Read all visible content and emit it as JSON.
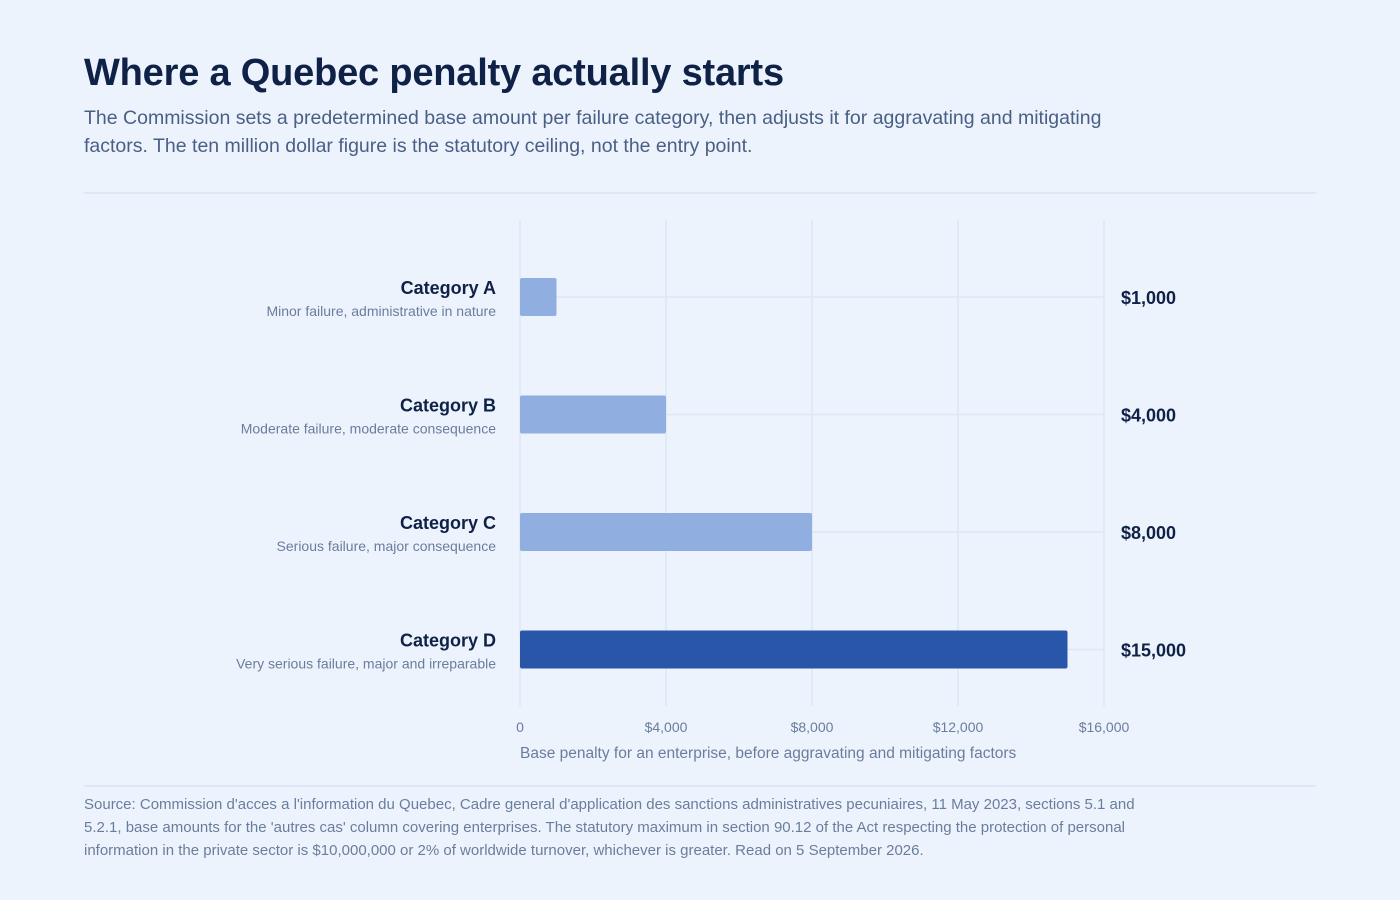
{
  "title": "Where a Quebec penalty actually starts",
  "subtitle": "The Commission sets a predetermined base amount per failure category, then adjusts it for aggravating and mitigating factors. The ten million dollar figure is the statutory ceiling, not the entry point.",
  "source": "Source: Commission d'acces a l'information du Quebec, Cadre general d'application des sanctions administratives pecuniaires, 11 May 2023, sections 5.1 and 5.2.1, base amounts for the 'autres cas' column covering enterprises. The statutory maximum in section 90.12 of the Act respecting the protection of personal information in the private sector is $10,000,000 or 2% of worldwide turnover, whichever is greater. Read on 5 September 2026.",
  "colors": {
    "bar": "#90aee0",
    "bar_highlight": "#2a56aa",
    "grid": "#dce6f6",
    "label": "#0f2147",
    "sublabel": "#6b7d9c",
    "tick": "#6b7d9c"
  },
  "chart_data": {
    "type": "bar",
    "orientation": "horizontal",
    "categories": [
      "Category A",
      "Category B",
      "Category C",
      "Category D"
    ],
    "descriptions": [
      "Minor failure, administrative in nature",
      "Moderate failure, moderate consequence",
      "Serious failure, major consequence",
      "Very serious failure, major and irreparable"
    ],
    "values": [
      1000,
      4000,
      8000,
      15000
    ],
    "value_labels": [
      "$1,000",
      "$4,000",
      "$8,000",
      "$15,000"
    ],
    "highlight": "Category D",
    "xlim": [
      0,
      16000
    ],
    "xticks": [
      0,
      4000,
      8000,
      12000,
      16000
    ],
    "xtick_labels": [
      "0",
      "$4,000",
      "$8,000",
      "$12,000",
      "$16,000"
    ],
    "xlabel": "Base penalty for an enterprise, before aggravating and mitigating factors",
    "grid": true
  }
}
